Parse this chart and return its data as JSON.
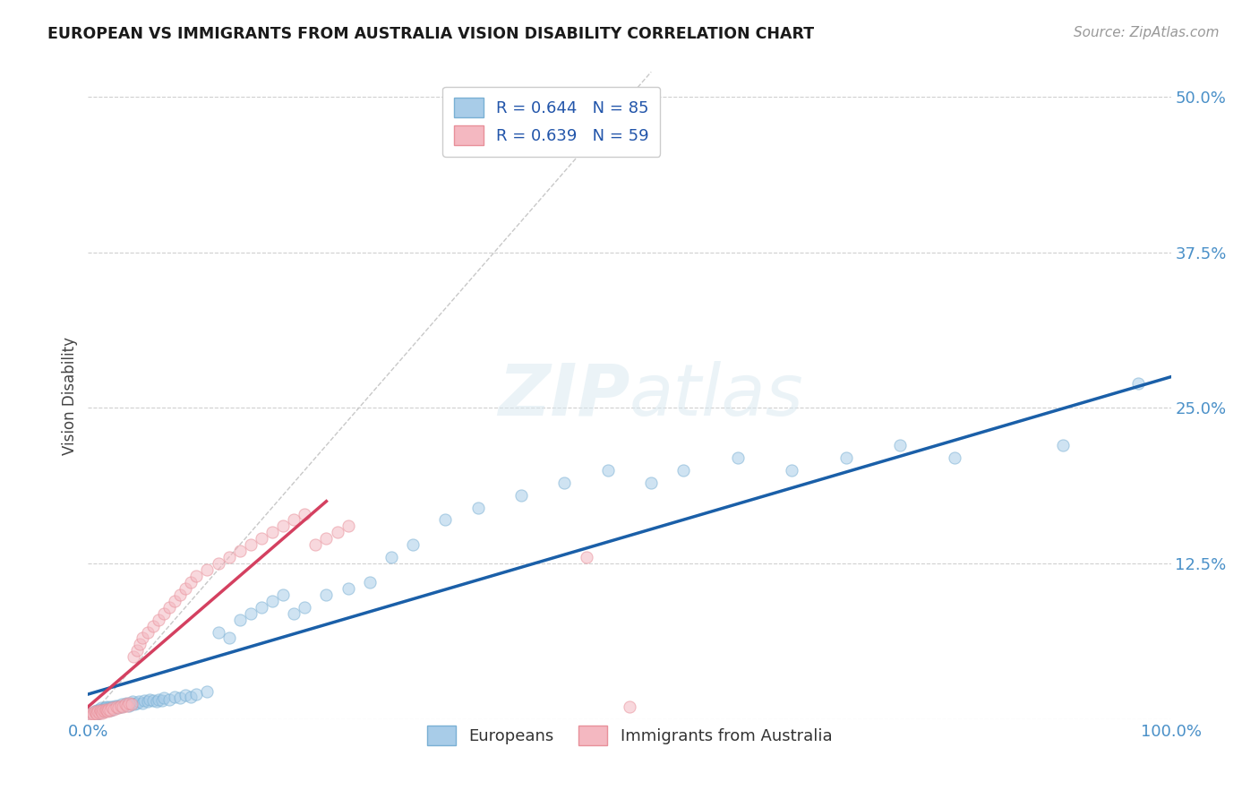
{
  "title": "EUROPEAN VS IMMIGRANTS FROM AUSTRALIA VISION DISABILITY CORRELATION CHART",
  "source": "Source: ZipAtlas.com",
  "ylabel": "Vision Disability",
  "xlim": [
    0.0,
    1.0
  ],
  "ylim": [
    0.0,
    0.52
  ],
  "background_color": "#ffffff",
  "grid_color": "#d0d0d0",
  "watermark": "ZIPatlas",
  "legend_R1": "R = 0.644",
  "legend_N1": "N = 85",
  "legend_R2": "R = 0.639",
  "legend_N2": "N = 59",
  "blue_marker_color": "#a8cce8",
  "blue_marker_edge": "#7ab0d4",
  "pink_marker_color": "#f4b8c1",
  "pink_marker_edge": "#e8909a",
  "blue_line_color": "#1a5fa8",
  "pink_line_color": "#d44060",
  "diag_color": "#c8c8c8",
  "blue_line_x": [
    0.0,
    1.0
  ],
  "blue_line_y": [
    0.02,
    0.275
  ],
  "pink_line_x": [
    0.0,
    0.22
  ],
  "pink_line_y": [
    0.01,
    0.175
  ],
  "europeans_x": [
    0.003,
    0.005,
    0.006,
    0.007,
    0.008,
    0.008,
    0.009,
    0.01,
    0.01,
    0.011,
    0.012,
    0.012,
    0.013,
    0.014,
    0.015,
    0.015,
    0.016,
    0.017,
    0.018,
    0.019,
    0.02,
    0.02,
    0.021,
    0.022,
    0.023,
    0.024,
    0.025,
    0.026,
    0.027,
    0.028,
    0.03,
    0.031,
    0.033,
    0.035,
    0.036,
    0.038,
    0.04,
    0.041,
    0.043,
    0.045,
    0.047,
    0.05,
    0.052,
    0.055,
    0.057,
    0.06,
    0.063,
    0.065,
    0.068,
    0.07,
    0.075,
    0.08,
    0.085,
    0.09,
    0.095,
    0.1,
    0.11,
    0.12,
    0.13,
    0.14,
    0.15,
    0.16,
    0.17,
    0.18,
    0.19,
    0.2,
    0.22,
    0.24,
    0.26,
    0.28,
    0.3,
    0.33,
    0.36,
    0.4,
    0.44,
    0.48,
    0.52,
    0.55,
    0.6,
    0.65,
    0.7,
    0.75,
    0.8,
    0.9,
    0.97
  ],
  "europeans_y": [
    0.005,
    0.003,
    0.006,
    0.004,
    0.005,
    0.007,
    0.006,
    0.005,
    0.008,
    0.007,
    0.006,
    0.009,
    0.008,
    0.007,
    0.006,
    0.009,
    0.008,
    0.01,
    0.009,
    0.008,
    0.007,
    0.01,
    0.009,
    0.008,
    0.01,
    0.009,
    0.011,
    0.01,
    0.009,
    0.011,
    0.01,
    0.012,
    0.011,
    0.013,
    0.012,
    0.011,
    0.013,
    0.014,
    0.012,
    0.013,
    0.014,
    0.013,
    0.015,
    0.014,
    0.016,
    0.015,
    0.014,
    0.016,
    0.015,
    0.017,
    0.016,
    0.018,
    0.017,
    0.019,
    0.018,
    0.02,
    0.022,
    0.07,
    0.065,
    0.08,
    0.085,
    0.09,
    0.095,
    0.1,
    0.085,
    0.09,
    0.1,
    0.105,
    0.11,
    0.13,
    0.14,
    0.16,
    0.17,
    0.18,
    0.19,
    0.2,
    0.19,
    0.2,
    0.21,
    0.2,
    0.21,
    0.22,
    0.21,
    0.22,
    0.27
  ],
  "immigrants_x": [
    0.002,
    0.003,
    0.004,
    0.005,
    0.006,
    0.007,
    0.008,
    0.009,
    0.01,
    0.011,
    0.012,
    0.013,
    0.014,
    0.015,
    0.016,
    0.017,
    0.018,
    0.019,
    0.02,
    0.022,
    0.024,
    0.026,
    0.028,
    0.03,
    0.032,
    0.034,
    0.036,
    0.038,
    0.04,
    0.042,
    0.045,
    0.048,
    0.05,
    0.055,
    0.06,
    0.065,
    0.07,
    0.075,
    0.08,
    0.085,
    0.09,
    0.095,
    0.1,
    0.11,
    0.12,
    0.13,
    0.14,
    0.15,
    0.16,
    0.17,
    0.18,
    0.19,
    0.2,
    0.21,
    0.22,
    0.23,
    0.24,
    0.46,
    0.5
  ],
  "immigrants_y": [
    0.004,
    0.003,
    0.005,
    0.004,
    0.006,
    0.005,
    0.004,
    0.006,
    0.005,
    0.007,
    0.006,
    0.005,
    0.007,
    0.006,
    0.008,
    0.007,
    0.006,
    0.008,
    0.007,
    0.009,
    0.008,
    0.01,
    0.009,
    0.011,
    0.01,
    0.012,
    0.011,
    0.013,
    0.012,
    0.05,
    0.055,
    0.06,
    0.065,
    0.07,
    0.075,
    0.08,
    0.085,
    0.09,
    0.095,
    0.1,
    0.105,
    0.11,
    0.115,
    0.12,
    0.125,
    0.13,
    0.135,
    0.14,
    0.145,
    0.15,
    0.155,
    0.16,
    0.165,
    0.14,
    0.145,
    0.15,
    0.155,
    0.13,
    0.01
  ]
}
